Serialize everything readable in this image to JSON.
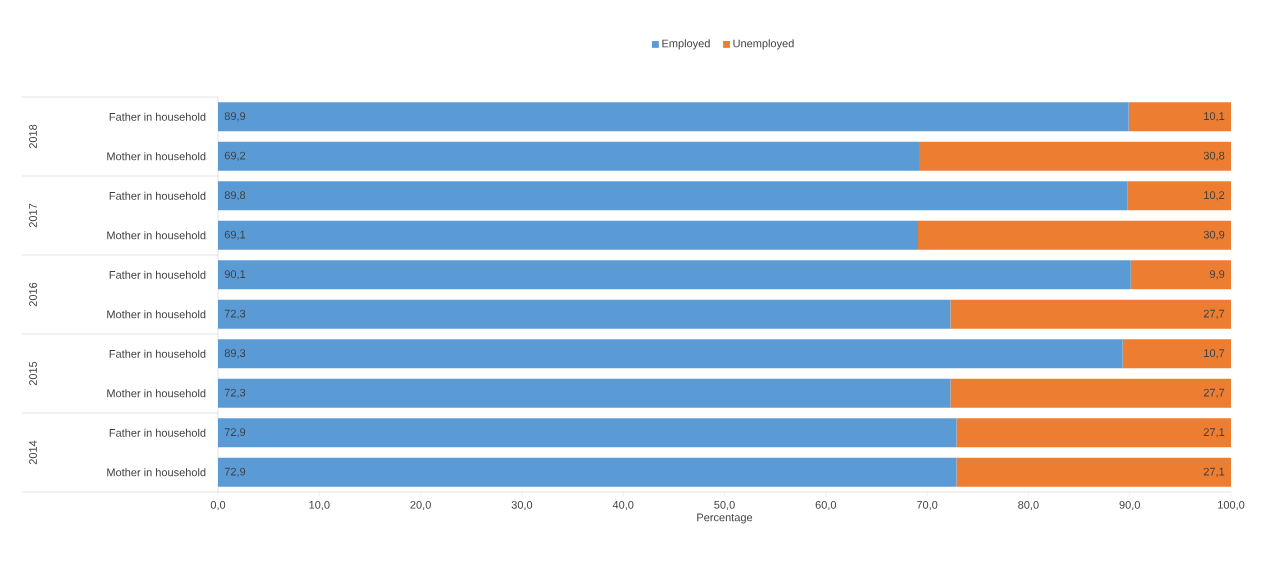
{
  "chart_data": {
    "type": "bar",
    "orientation": "horizontal",
    "stacked": true,
    "xlabel": "Percentage",
    "categories": [
      "Father in household",
      "Mother in household",
      "Father in household",
      "Mother in household",
      "Father in household",
      "Mother in household",
      "Father in household",
      "Mother in household",
      "Father in household",
      "Mother in household"
    ],
    "annotations": [
      "2018",
      "2017",
      "2016",
      "2015",
      "2014"
    ],
    "series": [
      {
        "name": "Employed",
        "color": "#5b9bd5",
        "values": [
          89.9,
          69.2,
          89.8,
          69.1,
          90.1,
          72.3,
          89.3,
          72.3,
          72.9,
          72.9
        ],
        "value_labels": [
          "89,9",
          "69,2",
          "89,8",
          "69,1",
          "90,1",
          "72,3",
          "89,3",
          "72,3",
          "72,9",
          "72,9"
        ]
      },
      {
        "name": "Unemployed",
        "color": "#ed7d31",
        "values": [
          10.1,
          30.8,
          10.2,
          30.9,
          9.9,
          27.7,
          10.7,
          27.7,
          27.1,
          27.1
        ],
        "value_labels": [
          "10,1",
          "30,8",
          "10,2",
          "30,9",
          "9,9",
          "27,7",
          "10,7",
          "27,7",
          "27,1",
          "27,1"
        ]
      }
    ],
    "xlim": [
      0,
      100
    ],
    "xticks": [
      {
        "value": 0,
        "label": "0,0"
      },
      {
        "value": 10,
        "label": "10,0"
      },
      {
        "value": 20,
        "label": "20,0"
      },
      {
        "value": 30,
        "label": "30,0"
      },
      {
        "value": 40,
        "label": "40,0"
      },
      {
        "value": 50,
        "label": "50,0"
      },
      {
        "value": 60,
        "label": "60,0"
      },
      {
        "value": 70,
        "label": "70,0"
      },
      {
        "value": 80,
        "label": "80,0"
      },
      {
        "value": 90,
        "label": "90,0"
      },
      {
        "value": 100,
        "label": "100,0"
      }
    ],
    "legend": "top",
    "grid": false
  }
}
